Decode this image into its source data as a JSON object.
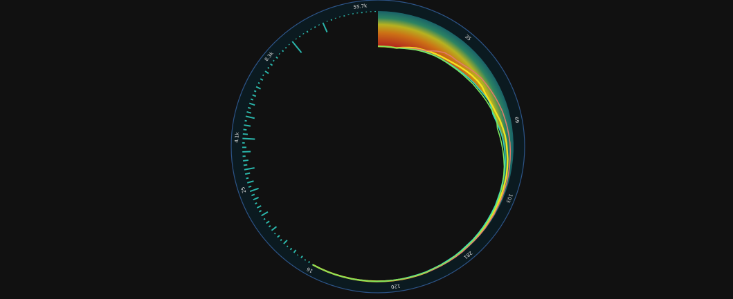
{
  "chart_data": {
    "type": "area",
    "layout": "radial",
    "angle_labels": [
      "55.7k",
      "35",
      "69",
      "103",
      "281",
      "120",
      "16",
      "25",
      "4.1k",
      "8.3k"
    ],
    "series": [
      {
        "name": "",
        "color": "#2fd3c8",
        "values": [
          1.0,
          1.0,
          1.0,
          1.0,
          0.97,
          0.93,
          0.89,
          0.86,
          0.83,
          0.8,
          0.78,
          0.76,
          0.73,
          0.7,
          0.66,
          0.62,
          0.58,
          0.55,
          0.5,
          0.45,
          0.44,
          0.46,
          0.42,
          0.37,
          0.32,
          0.28,
          0.25,
          0.22,
          0.2,
          0.18,
          0.17,
          0.15,
          0.14,
          0.12,
          0.11,
          0.1,
          0.09,
          0.08,
          0.07,
          0.07,
          0.06,
          0.05,
          0.05,
          0.04,
          0.04,
          0.03,
          0.03,
          0.03,
          0.02,
          0.02,
          0.02,
          0.02,
          0.02,
          0.02,
          0.01,
          0.01,
          0.01,
          0.01,
          0.01,
          0.01
        ]
      },
      {
        "name": "",
        "color": "#f2e21e",
        "values": [
          1.0,
          1.0,
          1.0,
          1.0,
          0.95,
          0.9,
          0.85,
          0.82,
          0.78,
          0.75,
          0.72,
          0.69,
          0.65,
          0.6,
          0.55,
          0.5,
          0.46,
          0.44,
          0.45,
          0.43,
          0.4,
          0.36,
          0.31,
          0.27,
          0.23,
          0.2,
          0.18,
          0.15,
          0.13,
          0.11,
          0.1,
          0.09,
          0.08,
          0.07,
          0.06,
          0.05,
          0.05,
          0.04,
          0.04,
          0.03,
          0.03,
          0.02,
          0.02,
          0.02,
          0.02,
          0.01,
          0.01,
          0.01,
          0.01,
          0.01,
          0.01,
          0.01,
          0.01,
          0.01,
          0.01,
          0.01,
          0.01,
          0.01,
          0.01,
          0.01
        ]
      },
      {
        "name": "",
        "color": "#e07a6a",
        "values": [
          1.0,
          1.0,
          1.0,
          1.0,
          0.96,
          0.92,
          0.87,
          0.83,
          0.76,
          0.66,
          0.58,
          0.55,
          0.54,
          0.5,
          0.44,
          0.38,
          0.33,
          0.3,
          0.27,
          0.24,
          0.21,
          0.18,
          0.16,
          0.14,
          0.12,
          0.1,
          0.09,
          0.08,
          0.07,
          0.06,
          0.05,
          0.05,
          0.04,
          0.04,
          0.03,
          0.03,
          0.02,
          0.02,
          0.02,
          0.02,
          0.01,
          0.01,
          0.01,
          0.01,
          0.01,
          0.01,
          0.01,
          0.01,
          0.01,
          0.01,
          0.01,
          0.01,
          0.01,
          0.01,
          0.01,
          0.01,
          0.01,
          0.01,
          0.01,
          0.01
        ]
      },
      {
        "name": "",
        "color": "#7ce85e",
        "values": [
          1.0,
          1.0,
          1.0,
          1.0,
          0.97,
          0.94,
          0.9,
          0.87,
          0.84,
          0.81,
          0.79,
          0.77,
          0.75,
          0.72,
          0.69,
          0.66,
          0.62,
          0.59,
          0.55,
          0.51,
          0.47,
          0.43,
          0.4,
          0.42,
          0.38,
          0.34,
          0.3,
          0.26,
          0.22,
          0.19,
          0.16,
          0.14,
          0.12,
          0.1,
          0.09,
          0.08,
          0.07,
          0.06,
          0.05,
          0.05,
          0.04,
          0.04,
          0.03,
          0.03,
          0.03,
          0.02,
          0.02,
          0.02,
          0.02,
          0.02,
          0.01,
          0.01,
          0.01,
          0.01,
          0.01,
          0.01,
          0.01,
          0.01,
          0.01,
          0.01
        ]
      }
    ],
    "spikes": [
      0.02,
      0.04,
      0.03,
      0.06,
      0.02,
      0.08,
      0.05,
      0.03,
      0.12,
      0.04,
      0.07,
      0.03,
      0.15,
      0.05,
      0.09,
      0.04,
      0.18,
      0.06,
      0.11,
      0.05,
      0.14,
      0.08,
      0.22,
      0.07,
      0.16,
      0.06,
      0.12,
      0.25,
      0.09,
      0.13,
      0.07,
      0.2,
      0.1,
      0.06,
      0.3,
      0.12,
      0.08,
      0.16,
      0.05,
      0.22,
      0.11,
      0.07,
      0.14,
      0.06,
      0.09,
      0.05,
      0.12,
      0.04,
      0.07,
      0.03,
      0.1,
      0.04,
      0.06,
      0.03,
      0.05,
      0.02,
      0.04,
      0.03,
      0.02,
      0.35,
      0.02,
      0.03,
      0.02,
      0.04,
      0.02,
      0.03,
      0.02,
      0.25,
      0.02,
      0.03,
      0.02,
      0.02,
      0.03,
      0.02,
      0.02,
      0.02,
      0.03,
      0.02,
      0.02,
      0.02
    ],
    "colors": {
      "background": "#111111",
      "ring": "#0b1a20",
      "ring_edge": "#3a6fb8",
      "label": "#dddddd"
    }
  }
}
